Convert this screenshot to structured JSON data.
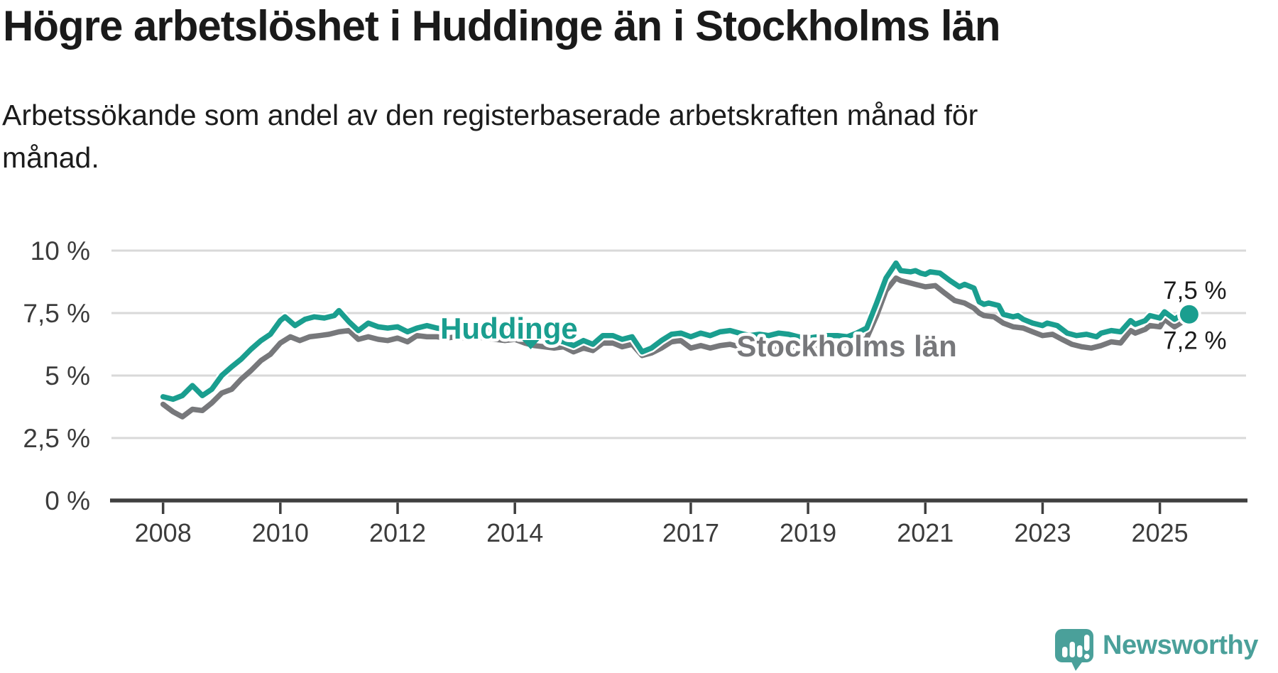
{
  "header": {
    "title": "Högre arbetslöshet i Huddinge än i Stockholms län",
    "subtitle": "Arbetssökande som andel av den registerbaserade arbetskraften månad för månad."
  },
  "footer": {
    "brand": "Newsworthy"
  },
  "colors": {
    "huddinge": "#1a9e8f",
    "stockholm": "#77787b",
    "grid": "#d9d9d9",
    "axis": "#3f3f3f",
    "tick_text": "#3c3c3c",
    "end_label_text": "#1a1a1a",
    "halo": "#ffffff",
    "brand_teal": "#4aa09a"
  },
  "chart_data": {
    "type": "line",
    "title": "Högre arbetslöshet i Huddinge än i Stockholms län",
    "subtitle": "Arbetssökande som andel av den registerbaserade arbetskraften månad för månad.",
    "unit": "%",
    "x_unit": "decimal year (monthly data)",
    "xlim": [
      2007.12,
      2026.47
    ],
    "ylim": [
      0,
      10
    ],
    "grid": "horizontal",
    "legend": "direct labels on lines",
    "y_ticks": [
      {
        "value": 0,
        "label": "0 %"
      },
      {
        "value": 2.5,
        "label": "2,5 %"
      },
      {
        "value": 5,
        "label": "5 %"
      },
      {
        "value": 7.5,
        "label": "7,5 %"
      },
      {
        "value": 10,
        "label": "10 %"
      }
    ],
    "x_ticks": [
      {
        "value": 2008,
        "label": "2008"
      },
      {
        "value": 2010,
        "label": "2010"
      },
      {
        "value": 2012,
        "label": "2012"
      },
      {
        "value": 2014,
        "label": "2014"
      },
      {
        "value": 2017,
        "label": "2017"
      },
      {
        "value": 2019,
        "label": "2019"
      },
      {
        "value": 2021,
        "label": "2021"
      },
      {
        "value": 2023,
        "label": "2023"
      },
      {
        "value": 2025,
        "label": "2025"
      }
    ],
    "series": [
      {
        "name": "Stockholms län",
        "color": "#77787b",
        "end_label": "7,2 %",
        "points": [
          [
            2008.0,
            3.85
          ],
          [
            2008.17,
            3.55
          ],
          [
            2008.33,
            3.35
          ],
          [
            2008.5,
            3.65
          ],
          [
            2008.67,
            3.6
          ],
          [
            2008.83,
            3.9
          ],
          [
            2009.0,
            4.3
          ],
          [
            2009.17,
            4.45
          ],
          [
            2009.33,
            4.85
          ],
          [
            2009.5,
            5.2
          ],
          [
            2009.67,
            5.6
          ],
          [
            2009.83,
            5.85
          ],
          [
            2010.0,
            6.3
          ],
          [
            2010.17,
            6.55
          ],
          [
            2010.33,
            6.4
          ],
          [
            2010.5,
            6.55
          ],
          [
            2010.67,
            6.6
          ],
          [
            2010.83,
            6.65
          ],
          [
            2011.0,
            6.75
          ],
          [
            2011.17,
            6.8
          ],
          [
            2011.33,
            6.45
          ],
          [
            2011.5,
            6.55
          ],
          [
            2011.67,
            6.45
          ],
          [
            2011.83,
            6.4
          ],
          [
            2012.0,
            6.5
          ],
          [
            2012.17,
            6.35
          ],
          [
            2012.33,
            6.6
          ],
          [
            2012.5,
            6.55
          ],
          [
            2012.67,
            6.55
          ],
          [
            2012.83,
            6.5
          ],
          [
            2013.0,
            6.55
          ],
          [
            2013.17,
            6.5
          ],
          [
            2013.33,
            6.55
          ],
          [
            2013.5,
            6.5
          ],
          [
            2013.67,
            6.45
          ],
          [
            2013.83,
            6.4
          ],
          [
            2014.0,
            6.45
          ],
          [
            2014.17,
            6.3
          ],
          [
            2014.33,
            6.2
          ],
          [
            2014.5,
            6.15
          ],
          [
            2014.67,
            6.1
          ],
          [
            2014.83,
            6.15
          ],
          [
            2015.0,
            5.95
          ],
          [
            2015.17,
            6.1
          ],
          [
            2015.33,
            6.0
          ],
          [
            2015.5,
            6.3
          ],
          [
            2015.67,
            6.3
          ],
          [
            2015.83,
            6.15
          ],
          [
            2016.0,
            6.25
          ],
          [
            2016.17,
            5.8
          ],
          [
            2016.33,
            5.9
          ],
          [
            2016.5,
            6.1
          ],
          [
            2016.67,
            6.35
          ],
          [
            2016.83,
            6.4
          ],
          [
            2017.0,
            6.1
          ],
          [
            2017.17,
            6.2
          ],
          [
            2017.33,
            6.1
          ],
          [
            2017.5,
            6.2
          ],
          [
            2017.67,
            6.25
          ],
          [
            2017.83,
            6.15
          ],
          [
            2018.0,
            6.1
          ],
          [
            2018.17,
            6.15
          ],
          [
            2018.33,
            6.1
          ],
          [
            2018.5,
            6.2
          ],
          [
            2018.67,
            6.15
          ],
          [
            2018.83,
            6.1
          ],
          [
            2019.0,
            6.15
          ],
          [
            2019.17,
            6.2
          ],
          [
            2019.33,
            6.25
          ],
          [
            2019.5,
            6.25
          ],
          [
            2019.67,
            6.2
          ],
          [
            2019.83,
            6.3
          ],
          [
            2020.0,
            6.5
          ],
          [
            2020.17,
            7.4
          ],
          [
            2020.33,
            8.4
          ],
          [
            2020.5,
            8.9
          ],
          [
            2020.58,
            8.8
          ],
          [
            2020.75,
            8.7
          ],
          [
            2020.83,
            8.65
          ],
          [
            2021.0,
            8.55
          ],
          [
            2021.17,
            8.6
          ],
          [
            2021.33,
            8.3
          ],
          [
            2021.5,
            8.0
          ],
          [
            2021.67,
            7.9
          ],
          [
            2021.83,
            7.7
          ],
          [
            2021.92,
            7.5
          ],
          [
            2022.0,
            7.4
          ],
          [
            2022.17,
            7.35
          ],
          [
            2022.33,
            7.1
          ],
          [
            2022.5,
            6.95
          ],
          [
            2022.67,
            6.9
          ],
          [
            2022.83,
            6.75
          ],
          [
            2023.0,
            6.6
          ],
          [
            2023.17,
            6.65
          ],
          [
            2023.33,
            6.45
          ],
          [
            2023.5,
            6.25
          ],
          [
            2023.67,
            6.15
          ],
          [
            2023.83,
            6.1
          ],
          [
            2024.0,
            6.2
          ],
          [
            2024.17,
            6.35
          ],
          [
            2024.33,
            6.3
          ],
          [
            2024.5,
            6.8
          ],
          [
            2024.58,
            6.7
          ],
          [
            2024.75,
            6.85
          ],
          [
            2024.83,
            7.0
          ],
          [
            2025.0,
            6.95
          ],
          [
            2025.08,
            7.25
          ],
          [
            2025.25,
            6.95
          ],
          [
            2025.42,
            7.2
          ],
          [
            2025.5,
            7.15
          ]
        ]
      },
      {
        "name": "Huddinge",
        "color": "#1a9e8f",
        "end_label": "7,5 %",
        "end_dot": true,
        "points": [
          [
            2008.0,
            4.15
          ],
          [
            2008.17,
            4.05
          ],
          [
            2008.33,
            4.2
          ],
          [
            2008.5,
            4.6
          ],
          [
            2008.67,
            4.2
          ],
          [
            2008.83,
            4.45
          ],
          [
            2009.0,
            5.0
          ],
          [
            2009.17,
            5.35
          ],
          [
            2009.33,
            5.65
          ],
          [
            2009.5,
            6.05
          ],
          [
            2009.67,
            6.4
          ],
          [
            2009.83,
            6.65
          ],
          [
            2010.0,
            7.2
          ],
          [
            2010.08,
            7.35
          ],
          [
            2010.25,
            7.0
          ],
          [
            2010.42,
            7.25
          ],
          [
            2010.58,
            7.35
          ],
          [
            2010.75,
            7.3
          ],
          [
            2010.92,
            7.4
          ],
          [
            2011.0,
            7.6
          ],
          [
            2011.17,
            7.15
          ],
          [
            2011.33,
            6.8
          ],
          [
            2011.5,
            7.1
          ],
          [
            2011.67,
            6.95
          ],
          [
            2011.83,
            6.9
          ],
          [
            2012.0,
            6.95
          ],
          [
            2012.17,
            6.75
          ],
          [
            2012.33,
            6.9
          ],
          [
            2012.5,
            7.0
          ],
          [
            2012.67,
            6.9
          ],
          [
            2012.83,
            6.85
          ],
          [
            2013.0,
            6.9
          ],
          [
            2013.17,
            6.85
          ],
          [
            2013.33,
            6.9
          ],
          [
            2013.5,
            6.85
          ],
          [
            2013.67,
            6.8
          ],
          [
            2013.83,
            6.75
          ],
          [
            2014.0,
            6.8
          ],
          [
            2014.17,
            6.65
          ],
          [
            2014.33,
            6.55
          ],
          [
            2014.5,
            6.5
          ],
          [
            2014.67,
            6.45
          ],
          [
            2014.83,
            6.35
          ],
          [
            2015.0,
            6.2
          ],
          [
            2015.17,
            6.4
          ],
          [
            2015.33,
            6.25
          ],
          [
            2015.5,
            6.6
          ],
          [
            2015.67,
            6.6
          ],
          [
            2015.83,
            6.45
          ],
          [
            2016.0,
            6.55
          ],
          [
            2016.17,
            5.95
          ],
          [
            2016.33,
            6.1
          ],
          [
            2016.5,
            6.4
          ],
          [
            2016.67,
            6.65
          ],
          [
            2016.83,
            6.7
          ],
          [
            2017.0,
            6.55
          ],
          [
            2017.17,
            6.7
          ],
          [
            2017.33,
            6.6
          ],
          [
            2017.5,
            6.75
          ],
          [
            2017.67,
            6.8
          ],
          [
            2017.83,
            6.7
          ],
          [
            2018.0,
            6.6
          ],
          [
            2018.17,
            6.65
          ],
          [
            2018.33,
            6.6
          ],
          [
            2018.5,
            6.7
          ],
          [
            2018.67,
            6.65
          ],
          [
            2018.83,
            6.55
          ],
          [
            2019.0,
            6.5
          ],
          [
            2019.17,
            6.55
          ],
          [
            2019.33,
            6.6
          ],
          [
            2019.5,
            6.6
          ],
          [
            2019.67,
            6.55
          ],
          [
            2019.83,
            6.7
          ],
          [
            2020.0,
            6.9
          ],
          [
            2020.17,
            7.9
          ],
          [
            2020.33,
            8.9
          ],
          [
            2020.5,
            9.5
          ],
          [
            2020.58,
            9.2
          ],
          [
            2020.75,
            9.15
          ],
          [
            2020.83,
            9.2
          ],
          [
            2020.92,
            9.1
          ],
          [
            2021.0,
            9.05
          ],
          [
            2021.08,
            9.15
          ],
          [
            2021.25,
            9.1
          ],
          [
            2021.42,
            8.8
          ],
          [
            2021.58,
            8.55
          ],
          [
            2021.67,
            8.65
          ],
          [
            2021.83,
            8.5
          ],
          [
            2021.92,
            7.95
          ],
          [
            2022.0,
            7.85
          ],
          [
            2022.08,
            7.9
          ],
          [
            2022.25,
            7.8
          ],
          [
            2022.33,
            7.45
          ],
          [
            2022.5,
            7.35
          ],
          [
            2022.58,
            7.4
          ],
          [
            2022.67,
            7.25
          ],
          [
            2022.83,
            7.1
          ],
          [
            2023.0,
            7.0
          ],
          [
            2023.08,
            7.1
          ],
          [
            2023.25,
            7.0
          ],
          [
            2023.42,
            6.7
          ],
          [
            2023.58,
            6.6
          ],
          [
            2023.75,
            6.65
          ],
          [
            2023.92,
            6.55
          ],
          [
            2024.0,
            6.7
          ],
          [
            2024.17,
            6.8
          ],
          [
            2024.33,
            6.75
          ],
          [
            2024.5,
            7.2
          ],
          [
            2024.58,
            7.05
          ],
          [
            2024.75,
            7.2
          ],
          [
            2024.83,
            7.4
          ],
          [
            2025.0,
            7.3
          ],
          [
            2025.08,
            7.55
          ],
          [
            2025.25,
            7.25
          ],
          [
            2025.42,
            7.5
          ],
          [
            2025.5,
            7.45
          ]
        ]
      }
    ],
    "annotations": {
      "huddinge_label": {
        "text": "Huddinge",
        "x": 2013.9,
        "y": 6.9
      },
      "huddinge_pointer": {
        "x": 2014.27,
        "base_y": 6.42,
        "tip_y": 6.05
      },
      "stockholm_label": {
        "text": "Stockholms län",
        "x": 2019.66,
        "y": 6.2
      },
      "end_labels": {
        "huddinge": "7,5 %",
        "stockholm": "7,2 %"
      }
    }
  }
}
